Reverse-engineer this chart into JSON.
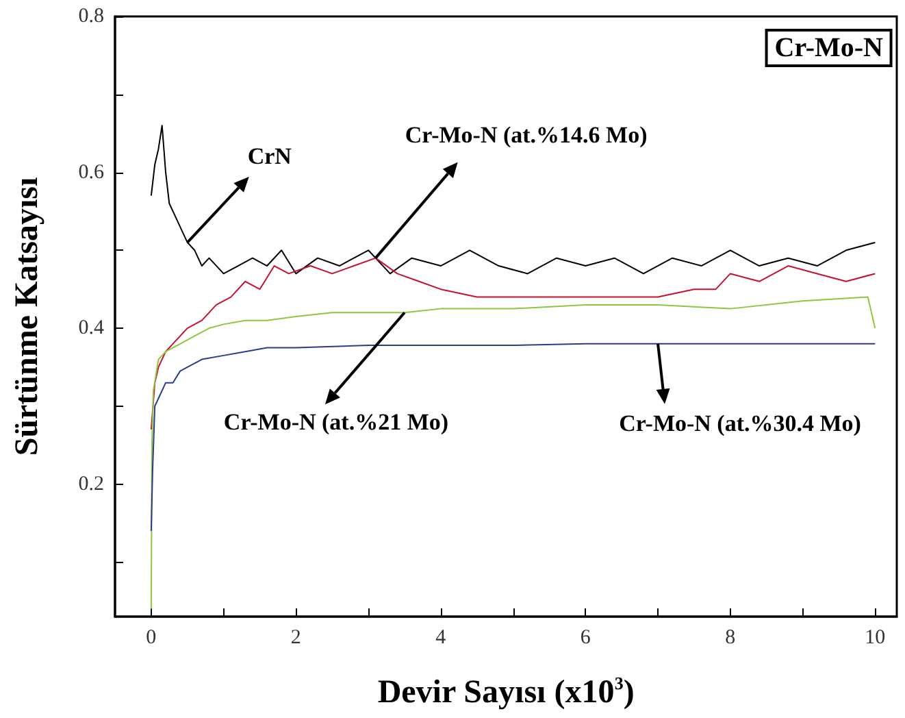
{
  "chart_data": {
    "type": "line",
    "title": "Cr-Mo-N",
    "xlabel": "Devir Sayısı (x10$^{3}$)",
    "ylabel": "Sürtünme Katsayısı",
    "xlim": [
      -0.5,
      10.3
    ],
    "xticks": [
      0,
      {
        "value": 1,
        "label": null
      },
      2,
      {
        "value": 3,
        "label": null
      },
      4,
      {
        "value": 5,
        "label": null
      },
      6,
      {
        "value": 7,
        "label": null
      },
      8,
      {
        "value": 9,
        "label": null
      },
      10
    ],
    "ylim": [
      0.03,
      0.8
    ],
    "yticks": [
      {
        "value": 0.1,
        "label": null
      },
      0.2,
      {
        "value": 0.3,
        "label": null
      },
      0.4,
      {
        "value": 0.5,
        "label": null
      },
      0.6,
      {
        "value": 0.7,
        "label": null
      },
      0.8
    ],
    "grid": false,
    "marker": "none",
    "line_style": "solid",
    "series": [
      {
        "color": "#000000",
        "x": [
          0,
          0.05,
          0.1,
          0.15,
          0.2,
          0.25,
          0.3,
          0.4,
          0.5,
          0.6,
          0.7,
          0.8,
          1,
          1.2,
          1.4,
          1.6,
          1.8,
          2,
          2.3,
          2.6,
          3,
          3.3,
          3.6,
          4,
          4.4,
          4.8,
          5.2,
          5.6,
          6,
          6.4,
          6.8,
          7.2,
          7.6,
          8,
          8.4,
          8.8,
          9.2,
          9.6,
          10
        ],
        "values": [
          0.57,
          0.61,
          0.63,
          0.66,
          0.6,
          0.56,
          0.55,
          0.53,
          0.51,
          0.5,
          0.48,
          0.49,
          0.47,
          0.48,
          0.49,
          0.48,
          0.5,
          0.47,
          0.49,
          0.48,
          0.5,
          0.47,
          0.49,
          0.48,
          0.5,
          0.48,
          0.47,
          0.49,
          0.48,
          0.49,
          0.47,
          0.49,
          0.48,
          0.5,
          0.48,
          0.49,
          0.48,
          0.5,
          0.51
        ]
      },
      {
        "color": "#c8102e",
        "x": [
          0,
          0.05,
          0.1,
          0.2,
          0.3,
          0.5,
          0.7,
          0.9,
          1.1,
          1.3,
          1.5,
          1.7,
          1.9,
          2.2,
          2.5,
          2.8,
          3.1,
          3.4,
          3.7,
          4,
          4.5,
          5,
          5.5,
          6,
          6.5,
          7,
          7.5,
          7.8,
          8,
          8.4,
          8.8,
          9.2,
          9.6,
          10
        ],
        "values": [
          0.27,
          0.33,
          0.35,
          0.37,
          0.38,
          0.4,
          0.41,
          0.43,
          0.44,
          0.46,
          0.45,
          0.48,
          0.47,
          0.48,
          0.47,
          0.48,
          0.49,
          0.47,
          0.46,
          0.45,
          0.44,
          0.44,
          0.44,
          0.44,
          0.44,
          0.44,
          0.45,
          0.45,
          0.47,
          0.46,
          0.48,
          0.47,
          0.46,
          0.47
        ]
      },
      {
        "color": "#8dc63f",
        "x": [
          0,
          0.01,
          0.03,
          0.1,
          0.2,
          0.4,
          0.6,
          0.8,
          1,
          1.3,
          1.6,
          2,
          2.5,
          3,
          3.5,
          4,
          5,
          6,
          7,
          8,
          9,
          9.9,
          10
        ],
        "values": [
          0.04,
          0.25,
          0.32,
          0.36,
          0.37,
          0.38,
          0.39,
          0.4,
          0.405,
          0.41,
          0.41,
          0.415,
          0.42,
          0.42,
          0.42,
          0.425,
          0.425,
          0.43,
          0.43,
          0.425,
          0.435,
          0.44,
          0.4
        ]
      },
      {
        "color": "#2e3a8c",
        "x": [
          0,
          0.02,
          0.05,
          0.1,
          0.2,
          0.3,
          0.4,
          0.5,
          0.7,
          1,
          1.3,
          1.6,
          2,
          3,
          4,
          5,
          6,
          7,
          8,
          9,
          10
        ],
        "values": [
          0.14,
          0.22,
          0.3,
          0.31,
          0.33,
          0.33,
          0.345,
          0.35,
          0.36,
          0.365,
          0.37,
          0.375,
          0.375,
          0.378,
          0.378,
          0.378,
          0.38,
          0.38,
          0.38,
          0.38,
          0.38
        ]
      }
    ],
    "annotations": [
      {
        "text": "CrN",
        "x": 0.5,
        "y": 0.51
      },
      {
        "text": "Cr-Mo-N (at.%14.6 Mo)",
        "x": 3.1,
        "y": 0.49
      },
      {
        "text": "Cr-Mo-N (at.%21 Mo)",
        "x": 3.5,
        "y": 0.42
      },
      {
        "text": "Cr-Mo-N (at.%30.4 Mo)",
        "x": 7,
        "y": 0.38
      }
    ]
  }
}
